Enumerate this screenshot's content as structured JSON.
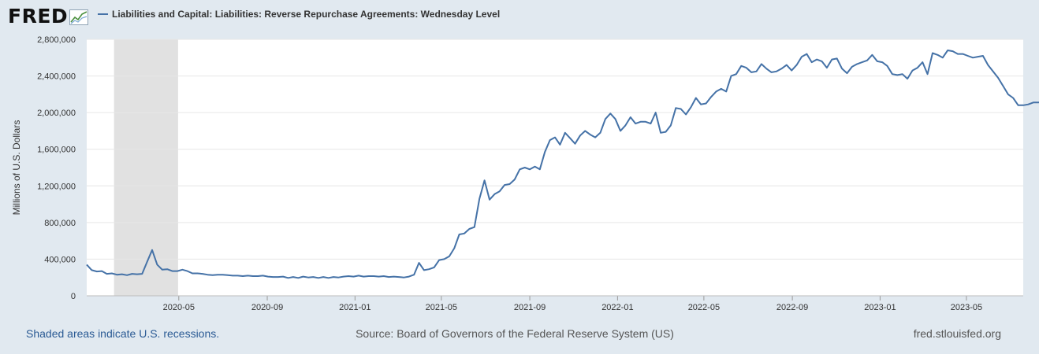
{
  "header": {
    "logo_text": "FRED",
    "logo_icon": "line-chart-icon",
    "legend_label": "Liabilities and Capital: Liabilities: Reverse Repurchase Agreements: Wednesday Level"
  },
  "colors": {
    "series": "#4572a7",
    "recession": "#e1e1e1",
    "background": "#e1e9f0"
  },
  "footer": {
    "recession_note": "Shaded areas indicate U.S. recessions.",
    "source": "Source: Board of Governors of the Federal Reserve System (US)",
    "site": "fred.stlouisfed.org"
  },
  "chart_data": {
    "type": "line",
    "title": "Liabilities and Capital: Liabilities: Reverse Repurchase Agreements: Wednesday Level",
    "xlabel": "",
    "ylabel": "Millions of U.S. Dollars",
    "ylim": [
      0,
      2800000
    ],
    "yticks": [
      0,
      400000,
      800000,
      1200000,
      1600000,
      2000000,
      2400000,
      2800000
    ],
    "ytick_labels": [
      "0",
      "400,000",
      "800,000",
      "1,200,000",
      "1,600,000",
      "2,000,000",
      "2,400,000",
      "2,800,000"
    ],
    "xlim": [
      "2019-12-25",
      "2023-07-19"
    ],
    "xticks": [
      {
        "date": "2020-05-01",
        "label": "2020-05"
      },
      {
        "date": "2020-09-01",
        "label": "2020-09"
      },
      {
        "date": "2021-01-01",
        "label": "2021-01"
      },
      {
        "date": "2021-05-01",
        "label": "2021-05"
      },
      {
        "date": "2021-09-01",
        "label": "2021-09"
      },
      {
        "date": "2022-01-01",
        "label": "2022-01"
      },
      {
        "date": "2022-05-01",
        "label": "2022-05"
      },
      {
        "date": "2022-09-01",
        "label": "2022-09"
      },
      {
        "date": "2023-01-01",
        "label": "2023-01"
      },
      {
        "date": "2023-05-01",
        "label": "2023-05"
      }
    ],
    "recessions": [
      {
        "start": "2020-02-01",
        "end": "2020-04-30"
      }
    ],
    "grid": true,
    "series": [
      {
        "name": "Liabilities and Capital: Liabilities: Reverse Repurchase Agreements: Wednesday Level",
        "start_date": "2019-12-25",
        "interval_days": 7,
        "values": [
          340000,
          280000,
          265000,
          270000,
          240000,
          245000,
          230000,
          235000,
          225000,
          240000,
          235000,
          240000,
          370000,
          500000,
          340000,
          285000,
          290000,
          270000,
          270000,
          285000,
          270000,
          245000,
          245000,
          240000,
          230000,
          225000,
          230000,
          230000,
          225000,
          220000,
          220000,
          215000,
          220000,
          215000,
          215000,
          220000,
          210000,
          205000,
          205000,
          210000,
          195000,
          205000,
          195000,
          210000,
          200000,
          205000,
          195000,
          205000,
          195000,
          205000,
          200000,
          210000,
          215000,
          210000,
          220000,
          210000,
          215000,
          215000,
          210000,
          215000,
          205000,
          210000,
          205000,
          200000,
          210000,
          230000,
          360000,
          280000,
          290000,
          310000,
          390000,
          400000,
          430000,
          520000,
          670000,
          680000,
          730000,
          750000,
          1060000,
          1260000,
          1050000,
          1110000,
          1140000,
          1210000,
          1220000,
          1270000,
          1380000,
          1400000,
          1380000,
          1410000,
          1380000,
          1570000,
          1700000,
          1730000,
          1650000,
          1780000,
          1720000,
          1660000,
          1750000,
          1800000,
          1760000,
          1730000,
          1780000,
          1930000,
          1990000,
          1930000,
          1800000,
          1860000,
          1950000,
          1880000,
          1900000,
          1900000,
          1880000,
          2000000,
          1780000,
          1790000,
          1860000,
          2050000,
          2040000,
          1980000,
          2060000,
          2160000,
          2090000,
          2100000,
          2170000,
          2230000,
          2260000,
          2230000,
          2400000,
          2420000,
          2510000,
          2490000,
          2440000,
          2450000,
          2530000,
          2480000,
          2440000,
          2450000,
          2480000,
          2520000,
          2460000,
          2520000,
          2610000,
          2640000,
          2550000,
          2580000,
          2560000,
          2490000,
          2580000,
          2590000,
          2480000,
          2430000,
          2500000,
          2530000,
          2550000,
          2570000,
          2630000,
          2560000,
          2550000,
          2510000,
          2420000,
          2410000,
          2420000,
          2370000,
          2460000,
          2490000,
          2550000,
          2420000,
          2650000,
          2630000,
          2600000,
          2680000,
          2670000,
          2640000,
          2640000,
          2620000,
          2600000,
          2610000,
          2620000,
          2520000,
          2450000,
          2380000,
          2290000,
          2200000,
          2160000,
          2080000,
          2080000,
          2090000,
          2110000,
          2110000,
          2120000
        ]
      }
    ]
  }
}
